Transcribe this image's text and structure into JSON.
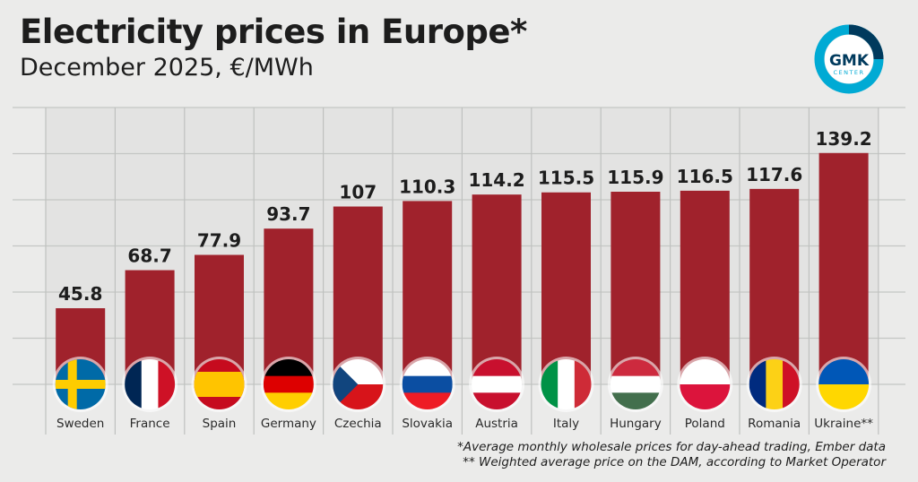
{
  "chart_data": {
    "type": "bar",
    "title": "Electricity prices in Europe*",
    "subtitle": "December 2025, €/MWh",
    "categories": [
      "Sweden",
      "France",
      "Spain",
      "Germany",
      "Czechia",
      "Slovakia",
      "Austria",
      "Italy",
      "Hungary",
      "Poland",
      "Romania",
      "Ukraine**"
    ],
    "values": [
      45.8,
      68.7,
      77.9,
      93.7,
      107,
      110.3,
      114.2,
      115.5,
      115.9,
      116.5,
      117.6,
      139.2
    ],
    "data_labels": [
      "45.8",
      "68.7",
      "77.9",
      "93.7",
      "107",
      "110.3",
      "114.2",
      "115.5",
      "115.9",
      "116.5",
      "117.6",
      "139.2"
    ],
    "ylim": [
      0,
      140
    ],
    "grid": true,
    "bar_color": "#a0222c",
    "flags": [
      {
        "type": "nordic",
        "colors": [
          "#006aa7",
          "#fecc00"
        ]
      },
      {
        "type": "v",
        "colors": [
          "#002654",
          "#ffffff",
          "#ce1126"
        ]
      },
      {
        "type": "h3w",
        "colors": [
          "#c60b1e",
          "#ffc400",
          "#c60b1e"
        ]
      },
      {
        "type": "h",
        "colors": [
          "#000000",
          "#dd0000",
          "#ffce00"
        ]
      },
      {
        "type": "cz",
        "colors": [
          "#ffffff",
          "#d7141a",
          "#11457e"
        ]
      },
      {
        "type": "h",
        "colors": [
          "#ffffff",
          "#0b4ea2",
          "#ee1c25"
        ]
      },
      {
        "type": "h",
        "colors": [
          "#c8102e",
          "#ffffff",
          "#c8102e"
        ]
      },
      {
        "type": "v",
        "colors": [
          "#009246",
          "#ffffff",
          "#ce2b37"
        ]
      },
      {
        "type": "h",
        "colors": [
          "#cd2a3e",
          "#ffffff",
          "#436f4d"
        ]
      },
      {
        "type": "h2",
        "colors": [
          "#ffffff",
          "#dc143c"
        ]
      },
      {
        "type": "v",
        "colors": [
          "#002b7f",
          "#fcd116",
          "#ce1126"
        ]
      },
      {
        "type": "h2",
        "colors": [
          "#0057b7",
          "#ffd700"
        ]
      }
    ]
  },
  "footnotes": [
    "*Average monthly wholesale prices for day-ahead trading, Ember data",
    "** Weighted average price on the DAM, according to Market Operator"
  ],
  "logo": {
    "text": "GMK",
    "subtext": "CENTER",
    "colors": [
      "#00aad4",
      "#003a5d"
    ]
  }
}
